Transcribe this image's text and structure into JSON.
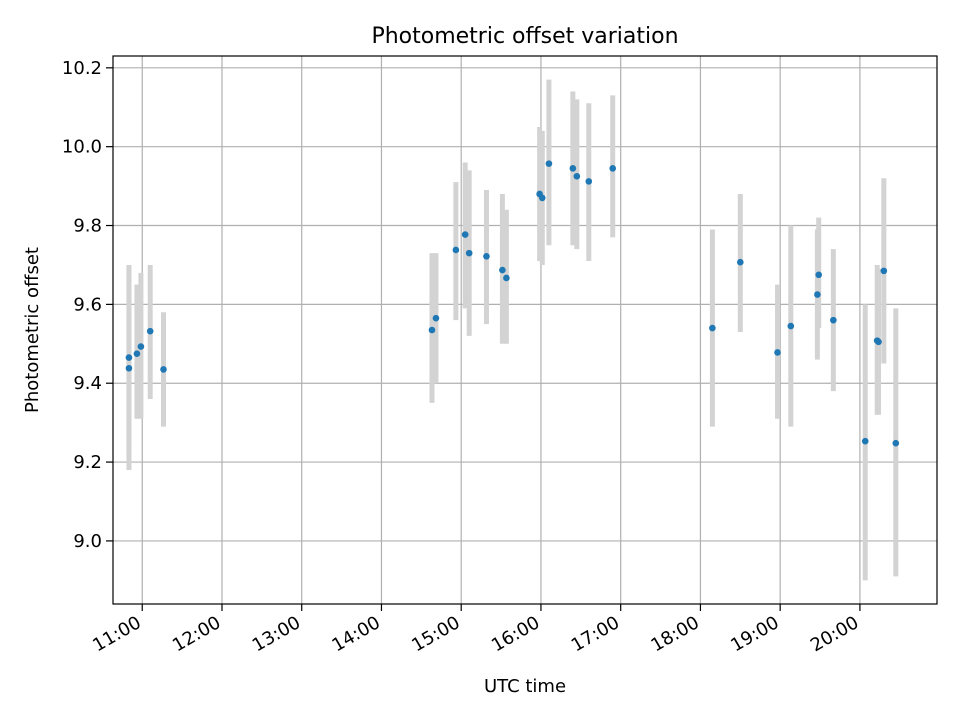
{
  "chart_data": {
    "type": "scatter",
    "title": "Photometric offset variation",
    "xlabel": "UTC time",
    "ylabel": "Photometric offset",
    "x_axis": {
      "kind": "time",
      "range": [
        "10:38",
        "20:58"
      ],
      "ticks": [
        "11:00",
        "12:00",
        "13:00",
        "14:00",
        "15:00",
        "16:00",
        "17:00",
        "18:00",
        "19:00",
        "20:00"
      ]
    },
    "y_axis": {
      "range": [
        8.84,
        10.23
      ],
      "ticks": [
        "9.0",
        "9.2",
        "9.4",
        "9.6",
        "9.8",
        "10.0",
        "10.2"
      ]
    },
    "grid": true,
    "colors": {
      "marker": "#1f77b4",
      "errorbar": "#d3d3d3",
      "grid": "#b0b0b0"
    },
    "points": [
      {
        "t": "10:50",
        "y": 9.465,
        "lo": 9.23,
        "hi": 9.7
      },
      {
        "t": "10:50",
        "y": 9.438,
        "lo": 9.18,
        "hi": 9.69
      },
      {
        "t": "10:56",
        "y": 9.475,
        "lo": 9.31,
        "hi": 9.65
      },
      {
        "t": "10:59",
        "y": 9.493,
        "lo": 9.31,
        "hi": 9.68
      },
      {
        "t": "11:06",
        "y": 9.532,
        "lo": 9.36,
        "hi": 9.7
      },
      {
        "t": "11:16",
        "y": 9.435,
        "lo": 9.29,
        "hi": 9.58
      },
      {
        "t": "14:38",
        "y": 9.535,
        "lo": 9.35,
        "hi": 9.73
      },
      {
        "t": "14:41",
        "y": 9.565,
        "lo": 9.4,
        "hi": 9.73
      },
      {
        "t": "14:56",
        "y": 9.738,
        "lo": 9.56,
        "hi": 9.91
      },
      {
        "t": "15:03",
        "y": 9.777,
        "lo": 9.59,
        "hi": 9.96
      },
      {
        "t": "15:06",
        "y": 9.73,
        "lo": 9.52,
        "hi": 9.94
      },
      {
        "t": "15:19",
        "y": 9.722,
        "lo": 9.55,
        "hi": 9.89
      },
      {
        "t": "15:31",
        "y": 9.687,
        "lo": 9.5,
        "hi": 9.88
      },
      {
        "t": "15:34",
        "y": 9.667,
        "lo": 9.5,
        "hi": 9.84
      },
      {
        "t": "15:59",
        "y": 9.88,
        "lo": 9.71,
        "hi": 10.05
      },
      {
        "t": "16:01",
        "y": 9.87,
        "lo": 9.7,
        "hi": 10.04
      },
      {
        "t": "16:06",
        "y": 9.957,
        "lo": 9.75,
        "hi": 10.17
      },
      {
        "t": "16:24",
        "y": 9.945,
        "lo": 9.75,
        "hi": 10.14
      },
      {
        "t": "16:27",
        "y": 9.925,
        "lo": 9.74,
        "hi": 10.12
      },
      {
        "t": "16:36",
        "y": 9.912,
        "lo": 9.71,
        "hi": 10.11
      },
      {
        "t": "16:54",
        "y": 9.945,
        "lo": 9.77,
        "hi": 10.13
      },
      {
        "t": "18:09",
        "y": 9.54,
        "lo": 9.29,
        "hi": 9.79
      },
      {
        "t": "18:30",
        "y": 9.707,
        "lo": 9.53,
        "hi": 9.88
      },
      {
        "t": "18:58",
        "y": 9.478,
        "lo": 9.31,
        "hi": 9.65
      },
      {
        "t": "19:08",
        "y": 9.545,
        "lo": 9.29,
        "hi": 9.8
      },
      {
        "t": "19:28",
        "y": 9.625,
        "lo": 9.46,
        "hi": 9.79
      },
      {
        "t": "19:29",
        "y": 9.675,
        "lo": 9.54,
        "hi": 9.82
      },
      {
        "t": "19:40",
        "y": 9.56,
        "lo": 9.38,
        "hi": 9.74
      },
      {
        "t": "20:04",
        "y": 9.253,
        "lo": 8.9,
        "hi": 9.6
      },
      {
        "t": "20:13",
        "y": 9.508,
        "lo": 9.32,
        "hi": 9.7
      },
      {
        "t": "20:14",
        "y": 9.505,
        "lo": 9.32,
        "hi": 9.69
      },
      {
        "t": "20:18",
        "y": 9.685,
        "lo": 9.45,
        "hi": 9.92
      },
      {
        "t": "20:27",
        "y": 9.248,
        "lo": 8.91,
        "hi": 9.59
      }
    ]
  }
}
